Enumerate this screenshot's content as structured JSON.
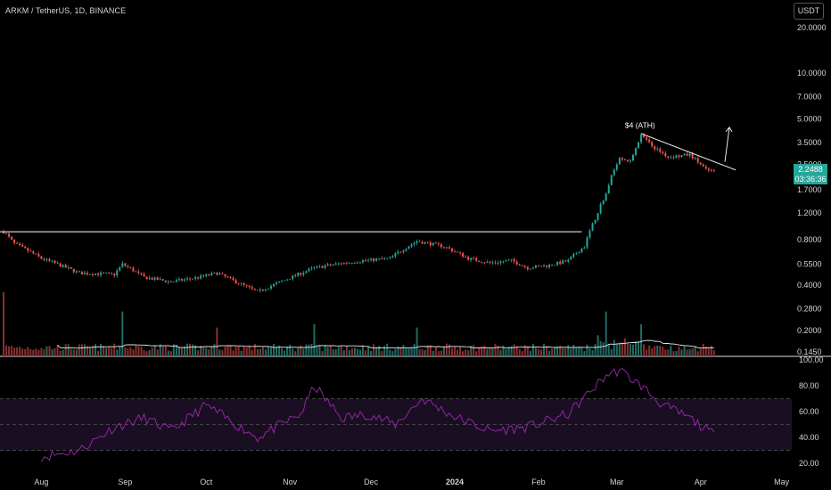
{
  "header": {
    "symbol_title": "ARKM / TetherUS, 1D, BINANCE",
    "currency_button": "USDT"
  },
  "last_price": {
    "value": "2.2488",
    "countdown": "03:36:36",
    "color": "#26a69a"
  },
  "colors": {
    "up": "#26a69a",
    "down": "#ef5350",
    "volume_up": "#1e6b64",
    "volume_down": "#8c2e2e",
    "volume_ma": "#e6e6e6",
    "rsi_line": "#9c27b0",
    "rsi_band": "#1a0f22",
    "annotation": "#ffffff"
  },
  "chart_data": {
    "type": "candlestick",
    "price_axis": {
      "scale": "log",
      "ticks": [
        "20.0000",
        "10.0000",
        "7.0000",
        "5.0000",
        "3.5000",
        "2.5000",
        "1.7000",
        "1.2000",
        "0.8000",
        "0.5500",
        "0.4000",
        "0.2800",
        "0.2000",
        "0.1450"
      ]
    },
    "time_axis": {
      "ticks": [
        "Aug",
        "Sep",
        "Oct",
        "Nov",
        "Dec",
        "2024",
        "Feb",
        "Mar",
        "Apr",
        "May"
      ]
    },
    "rsi_axis": {
      "ticks": [
        "100.00",
        "80.00",
        "60.00",
        "40.00",
        "20.00"
      ],
      "band": [
        30,
        70
      ],
      "midline": 50
    },
    "annotations": [
      {
        "type": "horizontal_line",
        "value": 0.9,
        "label": ""
      },
      {
        "type": "text",
        "label": "$4 (ATH)"
      },
      {
        "type": "trendline",
        "from_value": 4.0,
        "to_value": 2.3
      },
      {
        "type": "arrow",
        "direction": "up"
      }
    ],
    "close_anchors": [
      {
        "date": "2023-07-18",
        "close": 0.9
      },
      {
        "date": "2023-07-22",
        "close": 0.75
      },
      {
        "date": "2023-08-01",
        "close": 0.6
      },
      {
        "date": "2023-08-15",
        "close": 0.48
      },
      {
        "date": "2023-08-28",
        "close": 0.47
      },
      {
        "date": "2023-08-31",
        "close": 0.55
      },
      {
        "date": "2023-09-08",
        "close": 0.45
      },
      {
        "date": "2023-09-18",
        "close": 0.42
      },
      {
        "date": "2023-09-28",
        "close": 0.45
      },
      {
        "date": "2023-10-05",
        "close": 0.48
      },
      {
        "date": "2023-10-12",
        "close": 0.42
      },
      {
        "date": "2023-10-20",
        "close": 0.36
      },
      {
        "date": "2023-10-30",
        "close": 0.43
      },
      {
        "date": "2023-11-10",
        "close": 0.52
      },
      {
        "date": "2023-11-18",
        "close": 0.55
      },
      {
        "date": "2023-11-28",
        "close": 0.58
      },
      {
        "date": "2023-12-08",
        "close": 0.6
      },
      {
        "date": "2023-12-18",
        "close": 0.78
      },
      {
        "date": "2023-12-28",
        "close": 0.72
      },
      {
        "date": "2024-01-06",
        "close": 0.6
      },
      {
        "date": "2024-01-14",
        "close": 0.56
      },
      {
        "date": "2024-01-22",
        "close": 0.58
      },
      {
        "date": "2024-01-28",
        "close": 0.52
      },
      {
        "date": "2024-02-05",
        "close": 0.54
      },
      {
        "date": "2024-02-12",
        "close": 0.58
      },
      {
        "date": "2024-02-18",
        "close": 0.72
      },
      {
        "date": "2024-02-22",
        "close": 1.1
      },
      {
        "date": "2024-02-26",
        "close": 1.6
      },
      {
        "date": "2024-03-02",
        "close": 2.8
      },
      {
        "date": "2024-03-06",
        "close": 2.6
      },
      {
        "date": "2024-03-10",
        "close": 3.9
      },
      {
        "date": "2024-03-14",
        "close": 3.3
      },
      {
        "date": "2024-03-20",
        "close": 2.8
      },
      {
        "date": "2024-03-28",
        "close": 2.9
      },
      {
        "date": "2024-04-03",
        "close": 2.3
      },
      {
        "date": "2024-04-06",
        "close": 2.25
      }
    ],
    "rsi_anchors": [
      {
        "date": "2023-08-01",
        "rsi": 25
      },
      {
        "date": "2023-08-15",
        "rsi": 30
      },
      {
        "date": "2023-08-28",
        "rsi": 48
      },
      {
        "date": "2023-09-08",
        "rsi": 55
      },
      {
        "date": "2023-09-18",
        "rsi": 45
      },
      {
        "date": "2023-10-01",
        "rsi": 65
      },
      {
        "date": "2023-10-12",
        "rsi": 50
      },
      {
        "date": "2023-10-20",
        "rsi": 40
      },
      {
        "date": "2023-11-05",
        "rsi": 58
      },
      {
        "date": "2023-11-10",
        "rsi": 80
      },
      {
        "date": "2023-11-20",
        "rsi": 55
      },
      {
        "date": "2023-11-30",
        "rsi": 58
      },
      {
        "date": "2023-12-10",
        "rsi": 50
      },
      {
        "date": "2023-12-20",
        "rsi": 70
      },
      {
        "date": "2024-01-01",
        "rsi": 56
      },
      {
        "date": "2024-01-14",
        "rsi": 45
      },
      {
        "date": "2024-01-28",
        "rsi": 48
      },
      {
        "date": "2024-02-12",
        "rsi": 58
      },
      {
        "date": "2024-02-26",
        "rsi": 88
      },
      {
        "date": "2024-03-02",
        "rsi": 92
      },
      {
        "date": "2024-03-10",
        "rsi": 80
      },
      {
        "date": "2024-03-18",
        "rsi": 65
      },
      {
        "date": "2024-03-28",
        "rsi": 55
      },
      {
        "date": "2024-04-06",
        "rsi": 42
      }
    ],
    "volume_spikes": [
      {
        "date": "2023-07-18",
        "relative": 1.0
      },
      {
        "date": "2023-08-31",
        "relative": 0.7
      },
      {
        "date": "2023-10-05",
        "relative": 0.45
      },
      {
        "date": "2023-11-10",
        "relative": 0.5
      },
      {
        "date": "2023-12-18",
        "relative": 0.45
      },
      {
        "date": "2024-02-26",
        "relative": 0.7
      },
      {
        "date": "2024-03-10",
        "relative": 0.5
      }
    ]
  }
}
